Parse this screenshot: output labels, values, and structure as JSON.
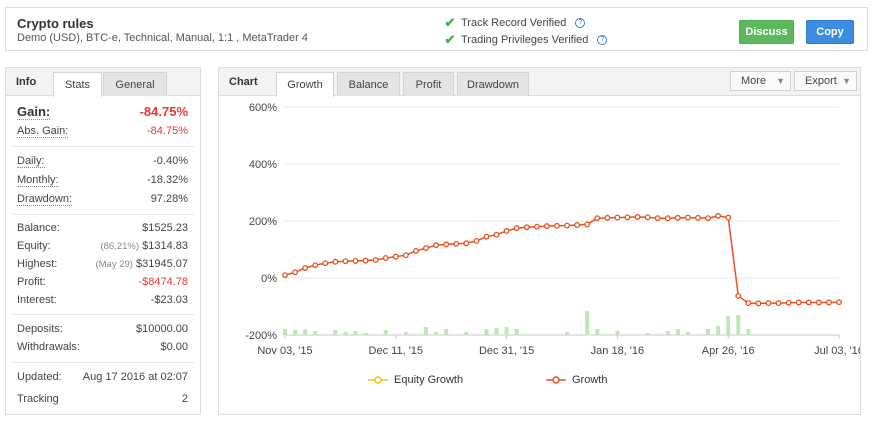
{
  "header": {
    "title": "Crypto rules",
    "subtitle": "Demo (USD), BTC-e, Technical, Manual, 1:1 , MetaTrader 4",
    "verified_1": "Track Record Verified",
    "verified_2": "Trading Privileges Verified",
    "discuss_label": "Discuss",
    "copy_label": "Copy",
    "check_icon": "check-icon",
    "help_icon": "help-icon"
  },
  "info": {
    "title": "Info",
    "tabs": [
      "Stats",
      "General"
    ],
    "gain": {
      "label": "Gain:",
      "value": "-84.75%"
    },
    "abs_gain": {
      "label": "Abs. Gain:",
      "value": "-84.75%"
    },
    "daily": {
      "label": "Daily:",
      "value": "-0.40%"
    },
    "monthly": {
      "label": "Monthly:",
      "value": "-18.32%"
    },
    "drawdown": {
      "label": "Drawdown:",
      "value": "97.28%"
    },
    "balance": {
      "label": "Balance:",
      "value": "$1525.23"
    },
    "equity": {
      "label": "Equity:",
      "note": "(86.21%)",
      "value": "$1314.83"
    },
    "highest": {
      "label": "Highest:",
      "note": "(May 29)",
      "value": "$31945.07"
    },
    "profit": {
      "label": "Profit:",
      "value": "-$8474.78"
    },
    "interest": {
      "label": "Interest:",
      "value": "-$23.03"
    },
    "deposits": {
      "label": "Deposits:",
      "value": "$10000.00"
    },
    "withdrawals": {
      "label": "Withdrawals:",
      "value": "$0.00"
    },
    "updated": {
      "label": "Updated:",
      "value": "Aug 17 2016 at 02:07"
    },
    "tracking": {
      "label": "Tracking",
      "value": "2"
    }
  },
  "chart_panel": {
    "title": "Chart",
    "tabs": [
      "Growth",
      "Balance",
      "Profit",
      "Drawdown"
    ],
    "more_label": "More",
    "export_label": "Export"
  },
  "chart_data": {
    "type": "line",
    "ylim": [
      -200,
      600
    ],
    "yticks": [
      "600%",
      "400%",
      "200%",
      "0%",
      "-200%"
    ],
    "ytick_values": [
      600,
      400,
      200,
      0,
      -200
    ],
    "xticks": [
      "Nov 03, '15",
      "Dec 11, '15",
      "Dec 31, '15",
      "Jan 18, '16",
      "Apr 26, '16",
      "Jul 03, '16"
    ],
    "xtick_index": [
      0,
      11,
      22,
      33,
      44,
      55
    ],
    "series": [
      {
        "name": "Equity Growth",
        "color": "#f0c419",
        "values": []
      },
      {
        "name": "Growth",
        "color": "#e8501e",
        "values": [
          10,
          20,
          35,
          45,
          52,
          57,
          59,
          60,
          61,
          63,
          70,
          75,
          80,
          95,
          105,
          115,
          118,
          120,
          122,
          130,
          145,
          152,
          165,
          175,
          178,
          180,
          182,
          183,
          184,
          186,
          188,
          210,
          211,
          212,
          213,
          214,
          213,
          210,
          210,
          211,
          212,
          211,
          210,
          218,
          212,
          -63,
          -88,
          -89,
          -88,
          -88,
          -87,
          -86,
          -86,
          -86,
          -86,
          -85
        ]
      }
    ],
    "bars": [
      6,
      5,
      6,
      4,
      0,
      5,
      3,
      4,
      2,
      0,
      5,
      0,
      3,
      0,
      8,
      3,
      6,
      0,
      3,
      0,
      6,
      7,
      8,
      6,
      0,
      0,
      0,
      0,
      3,
      0,
      24,
      6,
      0,
      4,
      0,
      0,
      2,
      0,
      4,
      6,
      3,
      0,
      6,
      9,
      19,
      20,
      6,
      0,
      0,
      0,
      0,
      0,
      0,
      0,
      0,
      0
    ],
    "bar_color": "#bfe6b8"
  }
}
